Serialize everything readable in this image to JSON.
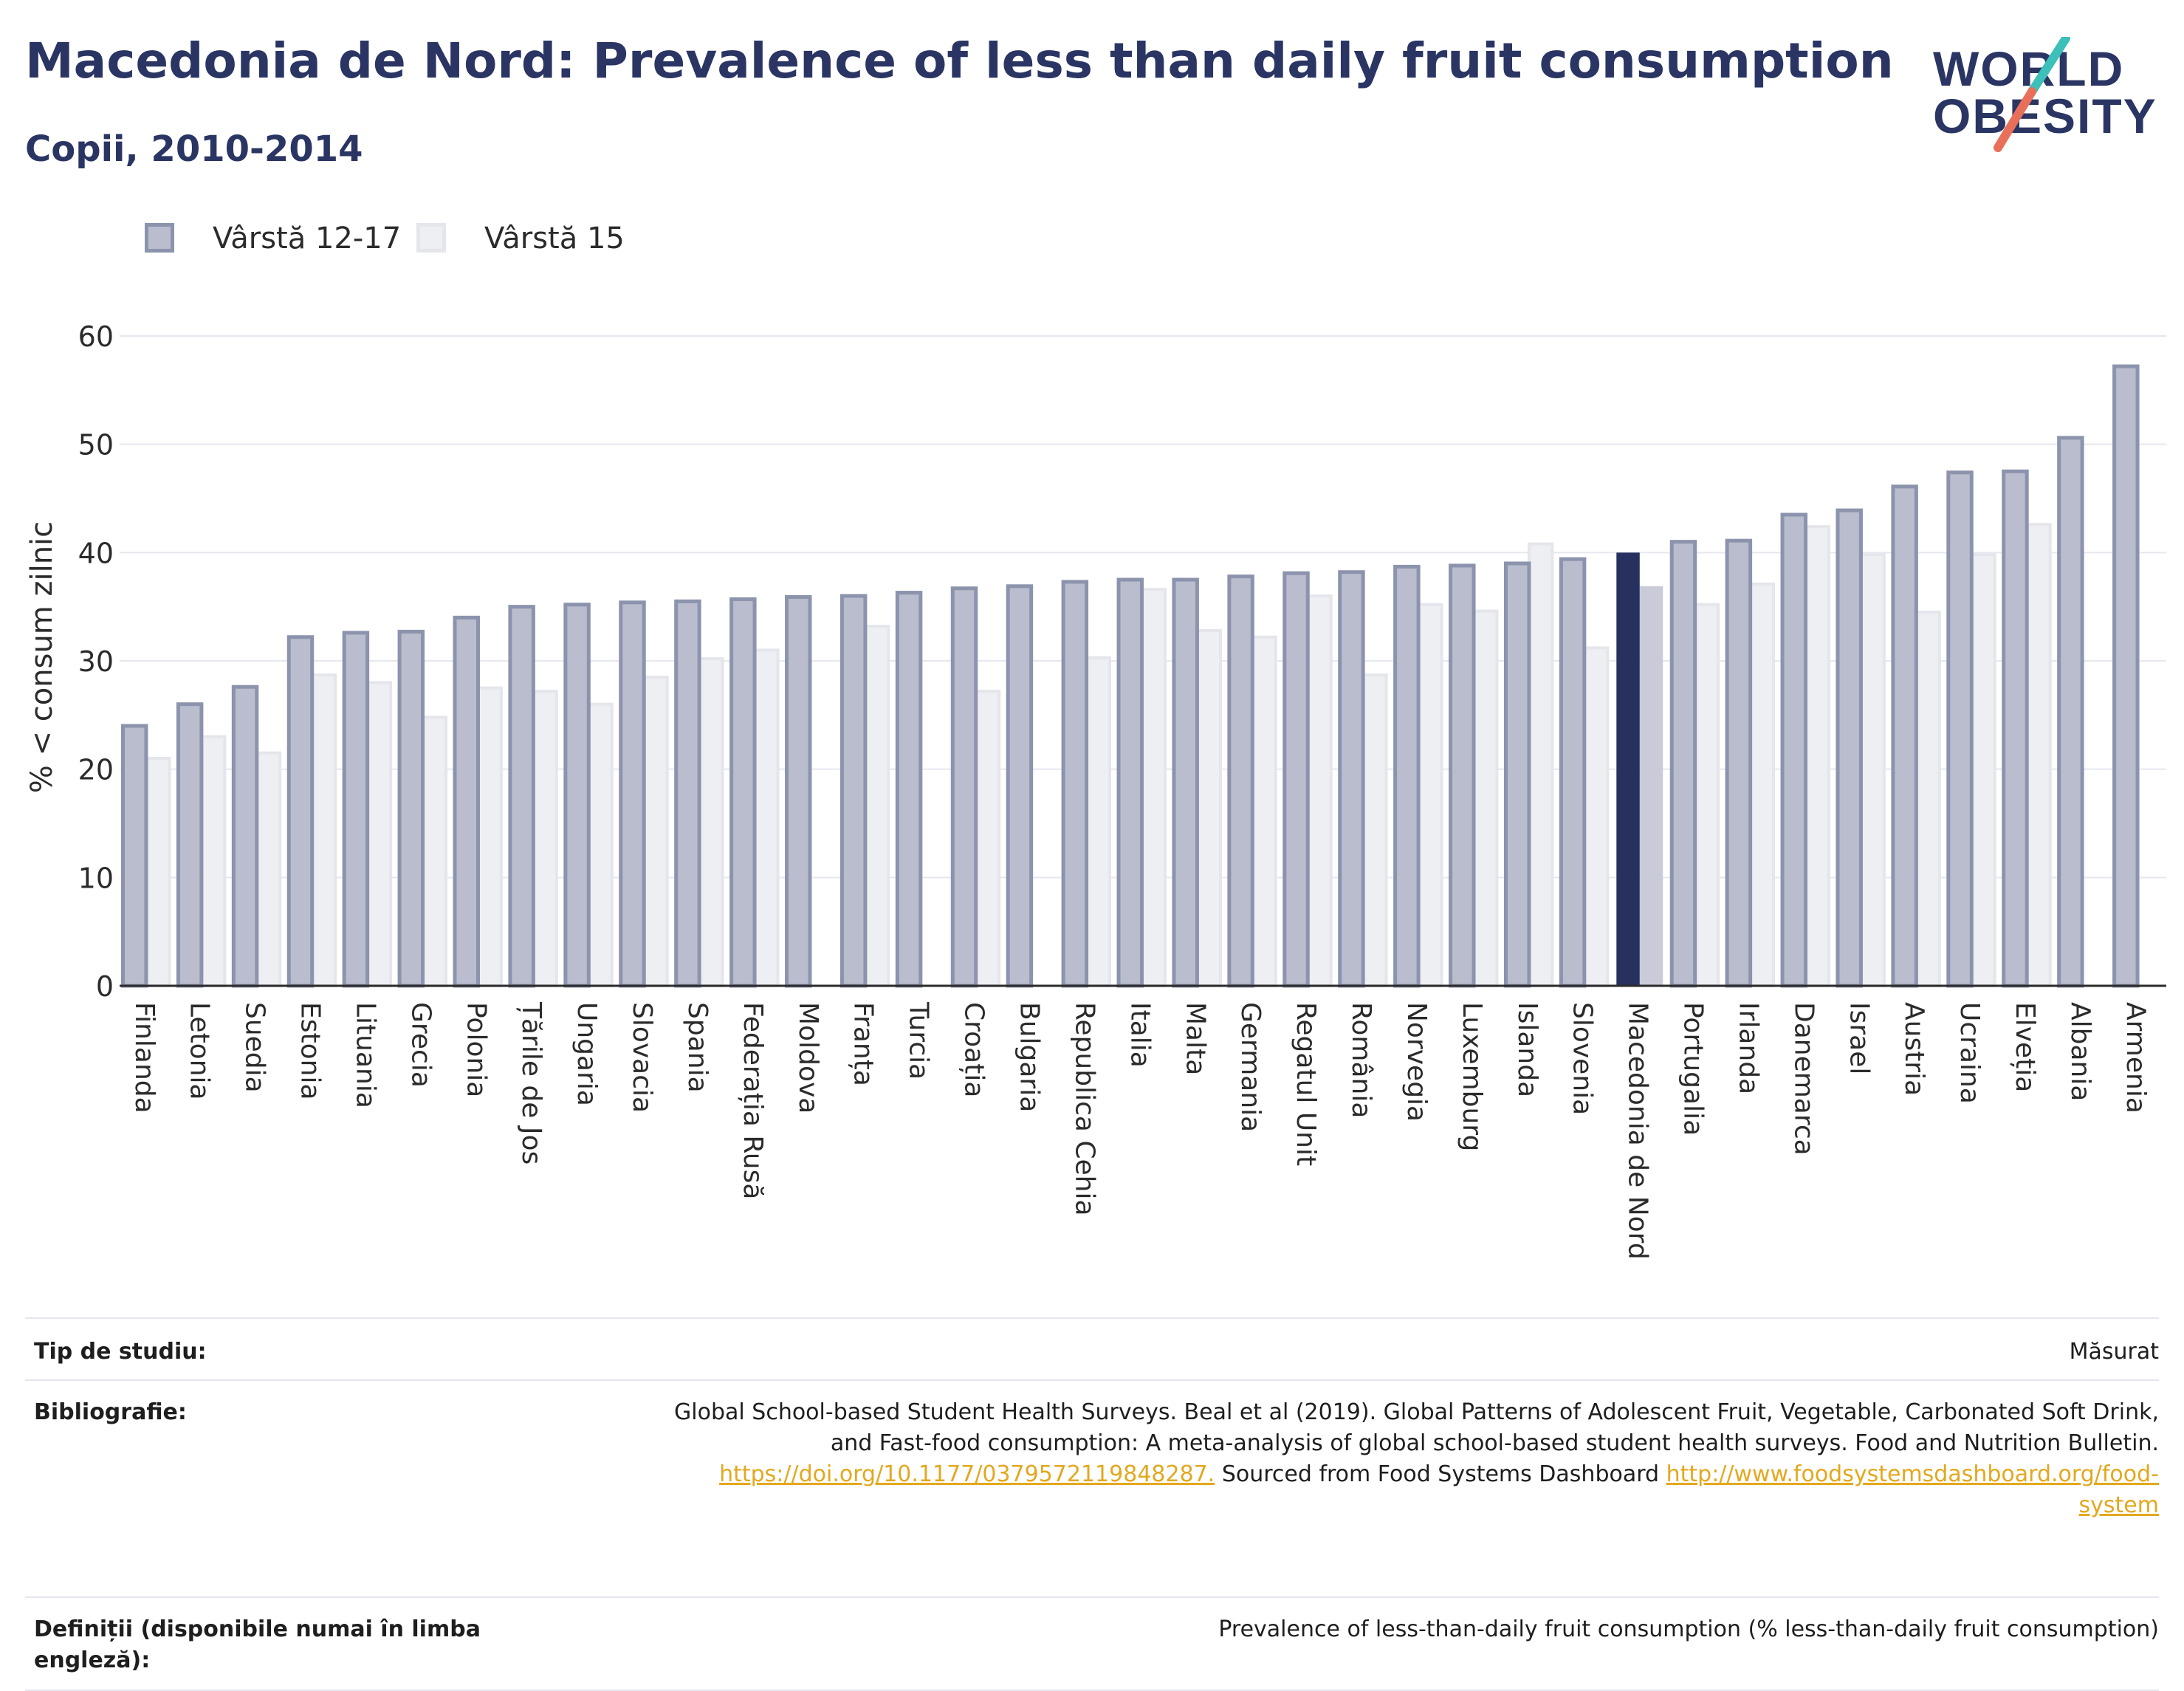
{
  "header": {
    "title": "Macedonia de Nord: Prevalence of less than daily fruit consumption",
    "subtitle": "Copii, 2010-2014",
    "logo_line1": "WORLD",
    "logo_line2": "OBESITY"
  },
  "legend": [
    {
      "label": "Vârstă 12-17",
      "fill": "#b9bdcd",
      "stroke": "#8c93ad"
    },
    {
      "label": "Vârstă 15",
      "fill": "#eeeff3",
      "stroke": "#e4e6ec"
    }
  ],
  "colors": {
    "highlight_primary": "#27315f",
    "highlight_secondary": "#c9cbd8",
    "grid": "#e6e8f0",
    "axis": "#2b2b2b",
    "logo_teal": "#3cc0b9",
    "logo_coral": "#e8705a"
  },
  "chart_data": {
    "type": "bar",
    "ylabel": "% < consum zilnic",
    "xlabel": "",
    "ylim": [
      0,
      60
    ],
    "yticks": [
      0,
      10,
      20,
      30,
      40,
      50,
      60
    ],
    "grid": true,
    "legend_position": "top-left",
    "highlight": "Macedonia de Nord",
    "categories": [
      "Finlanda",
      "Letonia",
      "Suedia",
      "Estonia",
      "Lituania",
      "Grecia",
      "Polonia",
      "Țările de Jos",
      "Ungaria",
      "Slovacia",
      "Spania",
      "Federația Rusă",
      "Moldova",
      "Franța",
      "Turcia",
      "Croația",
      "Bulgaria",
      "Republica Cehia",
      "Italia",
      "Malta",
      "Germania",
      "Regatul Unit",
      "România",
      "Norvegia",
      "Luxemburg",
      "Islanda",
      "Slovenia",
      "Macedonia de Nord",
      "Portugalia",
      "Irlanda",
      "Danemarca",
      "Israel",
      "Austria",
      "Ucraina",
      "Elveția",
      "Albania",
      "Armenia"
    ],
    "series": [
      {
        "name": "Vârstă 12-17",
        "values": [
          24.0,
          26.0,
          27.6,
          32.2,
          32.6,
          32.7,
          34.0,
          35.0,
          35.2,
          35.4,
          35.5,
          35.7,
          35.9,
          36.0,
          36.3,
          36.7,
          36.9,
          37.3,
          37.5,
          37.5,
          37.8,
          38.1,
          38.2,
          38.7,
          38.8,
          39.0,
          39.4,
          40.0,
          41.0,
          41.1,
          43.5,
          43.9,
          46.1,
          47.4,
          47.5,
          50.6,
          57.2
        ]
      },
      {
        "name": "Vârstă 15",
        "values": [
          21.0,
          23.0,
          21.5,
          28.7,
          28.0,
          24.8,
          27.5,
          27.2,
          26.0,
          28.5,
          30.2,
          31.0,
          null,
          33.2,
          null,
          27.2,
          null,
          30.3,
          36.6,
          32.8,
          32.2,
          36.0,
          28.7,
          35.2,
          34.6,
          40.8,
          31.2,
          36.9,
          35.2,
          37.1,
          42.4,
          39.8,
          34.5,
          39.8,
          42.6,
          null,
          null
        ]
      }
    ]
  },
  "footer": {
    "study_type_label": "Tip de studiu:",
    "study_type_value": "Măsurat",
    "bibliography_label": "Bibliografie:",
    "bibliography_line1": "Global School-based Student Health Surveys. Beal et al (2019). Global Patterns of Adolescent Fruit, Vegetable, Carbonated Soft Drink,",
    "bibliography_line2": "and Fast-food consumption: A meta-analysis of global school-based student health surveys. Food and Nutrition Bulletin.",
    "bibliography_link1": "https://doi.org/10.1177/0379572119848287.",
    "bibliography_mid": " Sourced from Food Systems Dashboard ",
    "bibliography_link2a": "http://www.foodsystemsdashboard.org/food-",
    "bibliography_link2b": "system",
    "definitions_label": "Definiții (disponibile numai în limba engleză):",
    "definitions_value": "Prevalence of less-than-daily fruit consumption (% less-than-daily fruit consumption)"
  }
}
